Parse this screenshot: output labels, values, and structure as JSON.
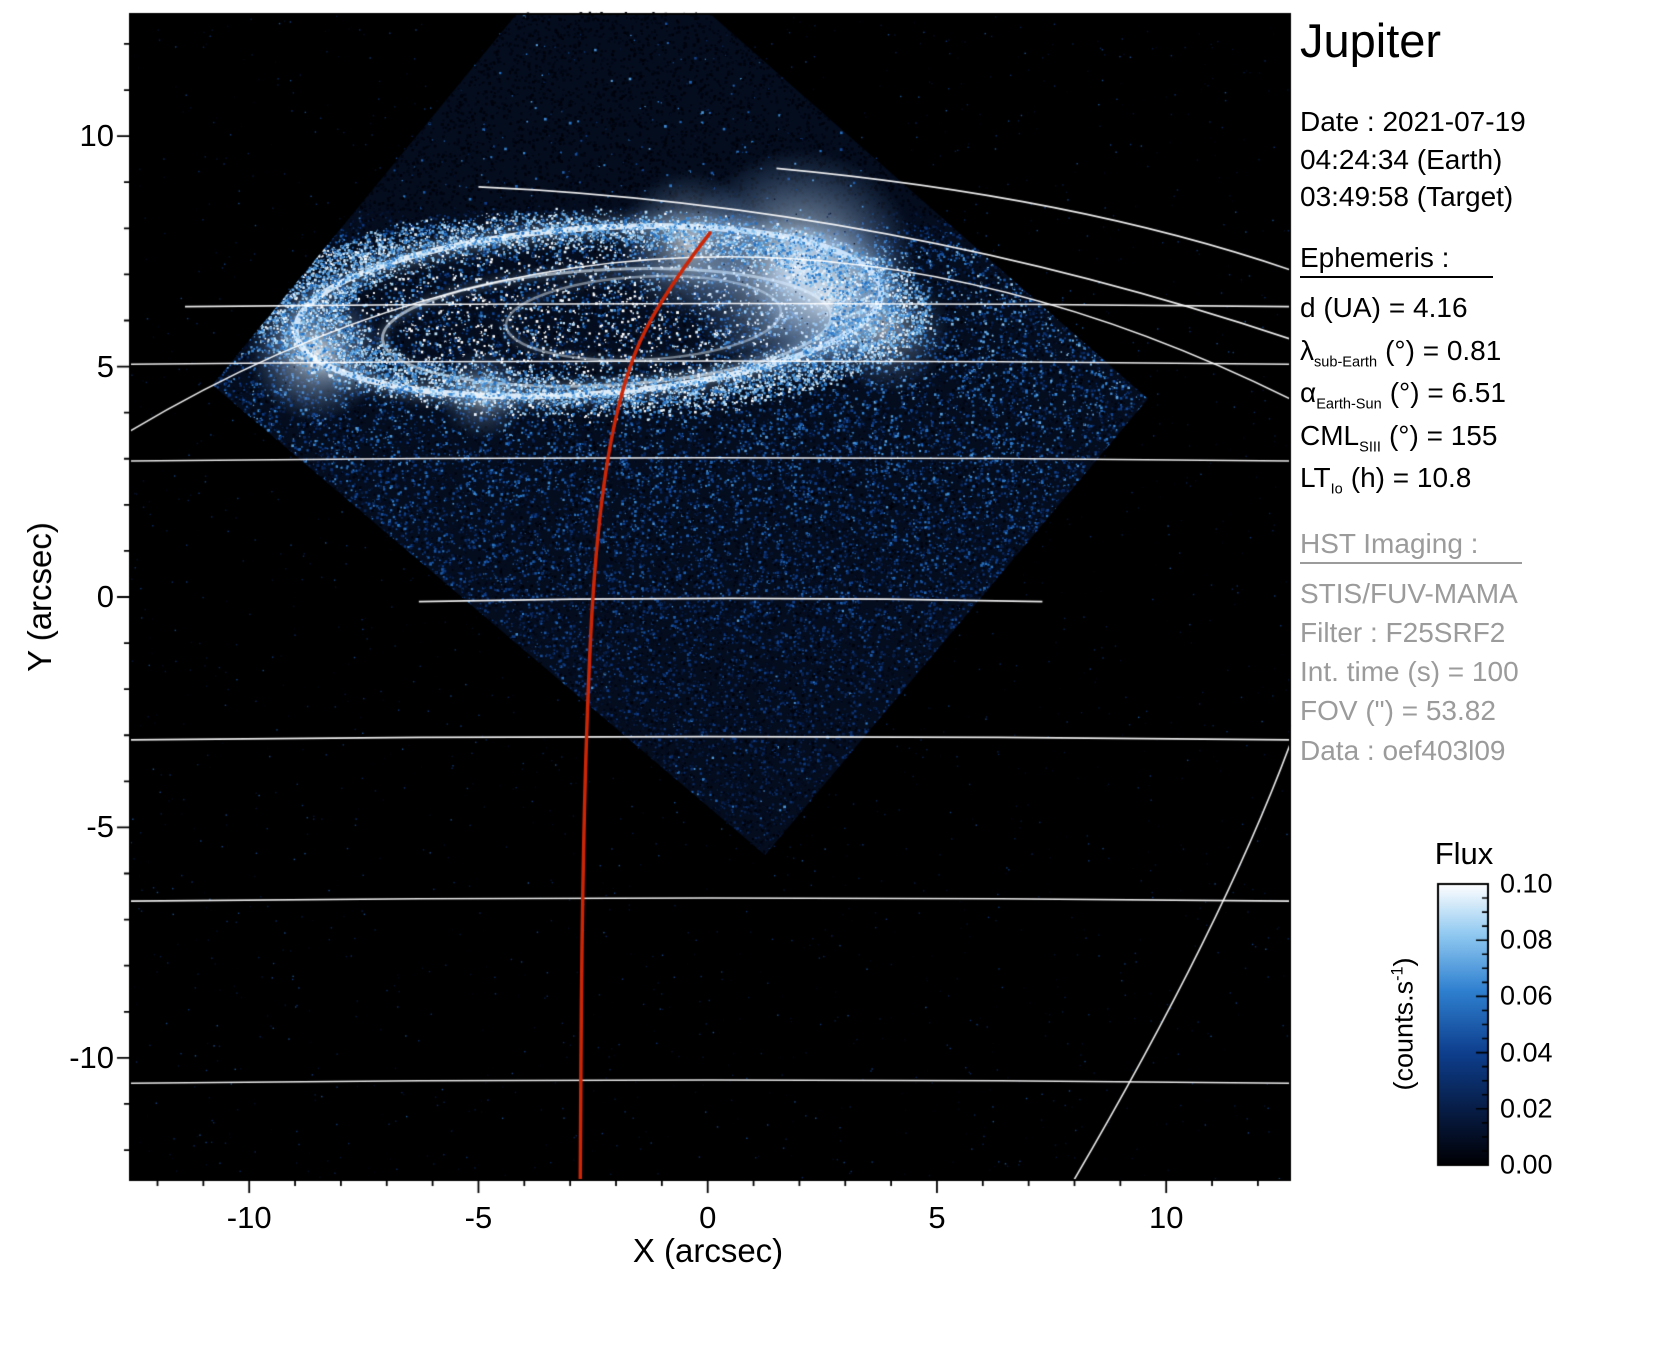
{
  "title": "Jupiter",
  "info": {
    "date_lines": [
      "Date : 2021-07-19",
      "04:24:34 (Earth)",
      "03:49:58 (Target)"
    ],
    "ephemeris_heading": "Ephemeris :",
    "ephemeris_rows": [
      {
        "pre": "d (UA)",
        "sub": "",
        "post": "= 4.16"
      },
      {
        "pre": "λ",
        "sub": "sub-Earth",
        "post": "(°) = 0.81"
      },
      {
        "pre": "α",
        "sub": "Earth-Sun",
        "post": "(°) = 6.51"
      },
      {
        "pre": "CML",
        "sub": "SIII",
        "post": "(°) = 155"
      },
      {
        "pre": "LT",
        "sub": "Io",
        "post": "(h) = 10.8"
      }
    ],
    "hst_heading": "HST Imaging :",
    "hst_lines": [
      "STIS/FUV-MAMA",
      "Filter : F25SRF2",
      "Int. time (s) = 100",
      "FOV (\") = 53.82",
      "Data : oef403l09"
    ]
  },
  "axes": {
    "xlabel": "X (arcsec)",
    "ylabel": "Y (arcsec)"
  },
  "colorbar": {
    "title": "Flux",
    "unit_pre": "(counts.s",
    "unit_sup": "-1",
    "unit_post": ")"
  },
  "chart_data": {
    "type": "heatmap",
    "title": "Jupiter",
    "subtitle": "HST STIS/FUV-MAMA image of Jupiter northern UV aurora with planetary graticule overlay",
    "xlabel": "X (arcsec)",
    "ylabel": "Y (arcsec)",
    "xlim": [
      -12.6,
      12.7
    ],
    "ylim": [
      -12.65,
      12.65
    ],
    "xticks": [
      -10,
      -5,
      0,
      5,
      10
    ],
    "yticks": [
      -10,
      -5,
      0,
      5,
      10
    ],
    "minor_tick_step": 1,
    "flux": {
      "label": "Flux",
      "unit": "counts.s-1",
      "min": 0.0,
      "max": 0.1,
      "ticks": [
        0.0,
        0.02,
        0.04,
        0.06,
        0.08,
        0.1
      ]
    },
    "colormap_stops": [
      [
        0,
        "#000004"
      ],
      [
        0.18,
        "#071a40"
      ],
      [
        0.4,
        "#0e3f8e"
      ],
      [
        0.62,
        "#2f80d0"
      ],
      [
        0.82,
        "#90c9f1"
      ],
      [
        1,
        "#ffffff"
      ]
    ],
    "ephemeris": {
      "d_UA": 4.16,
      "lambda_subEarth_deg": 0.81,
      "alpha_EarthSun_deg": 6.51,
      "CML_SIII_deg": 155,
      "LT_Io_h": 10.8
    },
    "imaging": {
      "instrument": "STIS/FUV-MAMA",
      "filter": "F25SRF2",
      "int_time_s": 100,
      "fov_arcsec": 53.82,
      "data_id": "oef403l09"
    },
    "detector_diamond": [
      [
        -10.8,
        4.6
      ],
      [
        -2.4,
        14.8
      ],
      [
        9.6,
        4.3
      ],
      [
        1.25,
        -5.6
      ]
    ],
    "aurora": {
      "main_oval": {
        "cx": -2.6,
        "cy": 6.2,
        "rx": 6.4,
        "ry": 1.8,
        "rot_deg": -4
      },
      "inner_oval": {
        "cx": -2.2,
        "cy": 5.85,
        "rx": 4.9,
        "ry": 1.25,
        "rot_deg": -3
      },
      "swirl": {
        "cx": -1.4,
        "cy": 6.05,
        "rx": 3.0,
        "ry": 0.9,
        "rot_deg": -3
      },
      "bright_spots": [
        {
          "x": 2.0,
          "y": 7.15,
          "r": 1.3,
          "a": 0.95
        },
        {
          "x": 2.7,
          "y": 6.55,
          "r": 0.85,
          "a": 0.8
        },
        {
          "x": -0.4,
          "y": 7.65,
          "r": 0.8,
          "a": 0.7
        },
        {
          "x": -8.55,
          "y": 5.3,
          "r": 0.75,
          "a": 0.85
        },
        {
          "x": -4.9,
          "y": 4.4,
          "r": 0.5,
          "a": 0.5
        },
        {
          "x": 3.9,
          "y": 5.8,
          "r": 0.7,
          "a": 0.5
        }
      ]
    },
    "graticule": {
      "latitude_lines": [
        {
          "y": 6.3,
          "x1": -11.4,
          "x2": 12.7
        },
        {
          "y": 5.05,
          "x1": -12.6,
          "x2": 12.7
        },
        {
          "y": 2.95,
          "x1": -12.6,
          "x2": 12.7
        },
        {
          "y": -0.1,
          "x1": -6.3,
          "x2": 7.3
        },
        {
          "y": -3.1,
          "x1": -12.6,
          "x2": 12.7
        },
        {
          "y": -6.6,
          "x1": -12.6,
          "x2": 12.7
        },
        {
          "y": -10.55,
          "x1": -12.6,
          "x2": 12.7
        }
      ],
      "meridian_arcs": [
        {
          "p0": [
            -12.6,
            3.6
          ],
          "c": [
            -0.5,
            10.8
          ],
          "p1": [
            12.7,
            4.3
          ]
        },
        {
          "p0": [
            -5.0,
            8.9
          ],
          "c": [
            4.0,
            8.5
          ],
          "p1": [
            12.7,
            5.6
          ]
        },
        {
          "p0": [
            1.5,
            9.3
          ],
          "c": [
            8.0,
            8.7
          ],
          "p1": [
            12.7,
            7.1
          ]
        },
        {
          "p0": [
            7.9,
            -12.8
          ],
          "c": [
            11.2,
            -7.2
          ],
          "p1": [
            12.7,
            -3.2
          ]
        }
      ]
    },
    "red_meridian": {
      "color": "#cc2606",
      "points": [
        [
          0.05,
          7.9
        ],
        [
          -1.2,
          6.3
        ],
        [
          -2.0,
          4.2
        ],
        [
          -2.45,
          1.2
        ],
        [
          -2.65,
          -2.8
        ],
        [
          -2.75,
          -7.5
        ],
        [
          -2.78,
          -12.8
        ]
      ]
    }
  }
}
